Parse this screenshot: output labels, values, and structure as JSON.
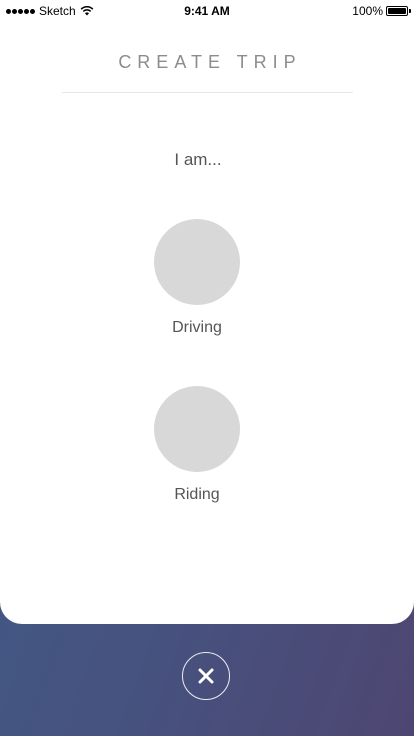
{
  "status_bar": {
    "carrier": "Sketch",
    "time": "9:41 AM",
    "battery_percent": "100%",
    "battery_level": 1.0,
    "icons": [
      "signal-icon",
      "wifi-icon",
      "battery-icon"
    ]
  },
  "header": {
    "title": "CREATE TRIP"
  },
  "prompt": "I am...",
  "options": [
    {
      "label": "Driving"
    },
    {
      "label": "Riding"
    }
  ],
  "close_icon": "close-icon",
  "colors": {
    "background_gradient_start": "#3f5d8a",
    "background_gradient_end": "#4e4672",
    "sheet": "#ffffff",
    "option_circle": "#d8d8d8",
    "title_text": "#8c8c8c"
  }
}
